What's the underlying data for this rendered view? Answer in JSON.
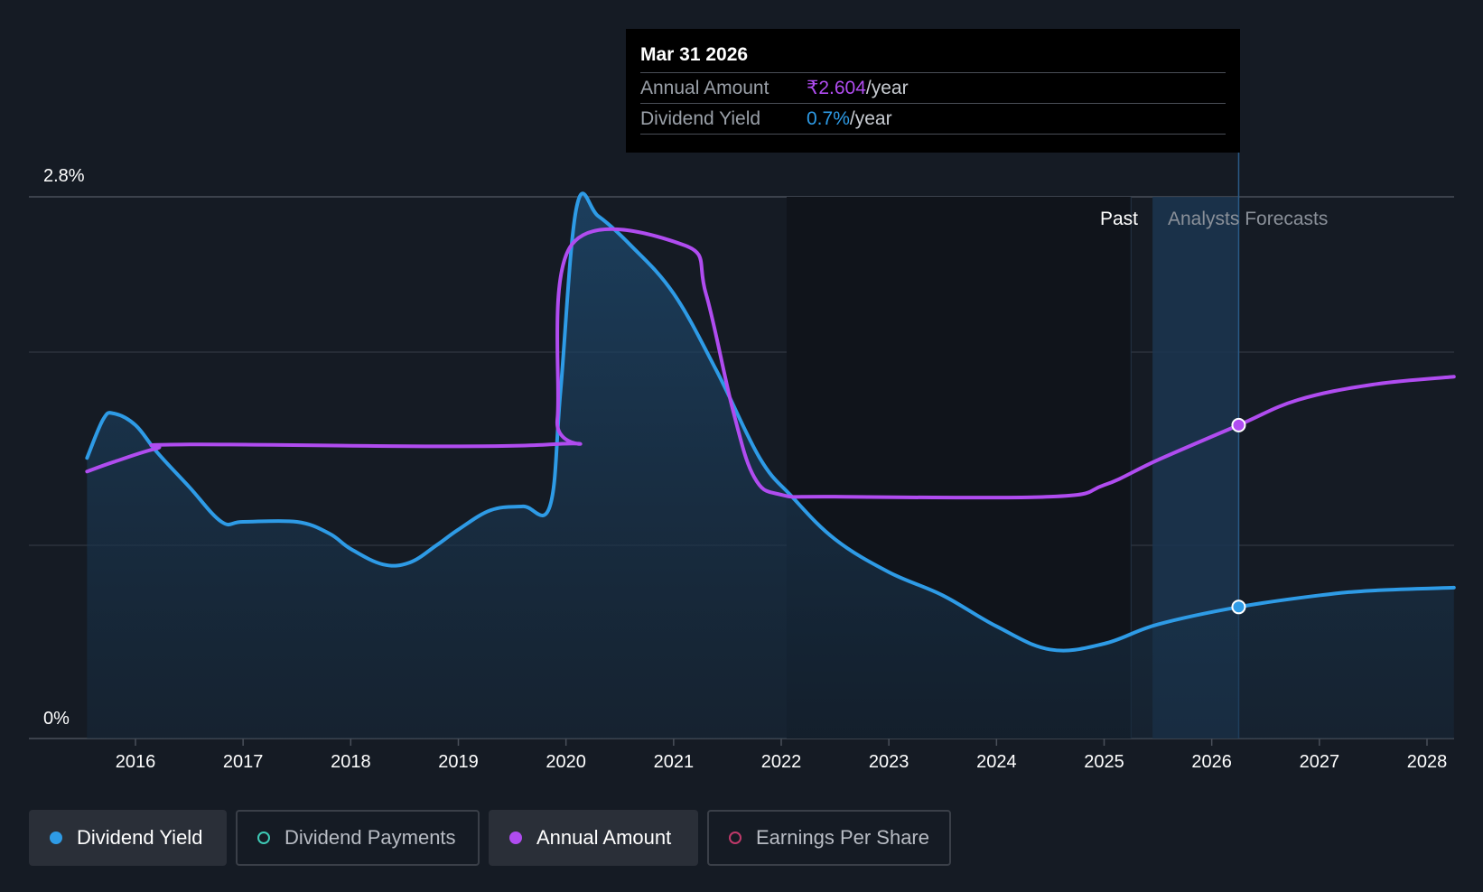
{
  "tooltip": {
    "date": "Mar 31 2026",
    "rows": [
      {
        "label": "Annual Amount",
        "value": "₹2.604",
        "unit": "/year"
      },
      {
        "label": "Dividend Yield",
        "value": "0.7%",
        "unit": "/year"
      }
    ]
  },
  "regions": {
    "past": "Past",
    "forecast": "Analysts Forecasts"
  },
  "legend": [
    {
      "label": "Dividend Yield",
      "color": "#2e9be6",
      "active": true
    },
    {
      "label": "Dividend Payments",
      "color": "#3ec9b5",
      "active": false
    },
    {
      "label": "Annual Amount",
      "color": "#b04cf0",
      "active": true
    },
    {
      "label": "Earnings Per Share",
      "color": "#c0396a",
      "active": false
    }
  ],
  "chart_data": {
    "type": "line",
    "y_ticks": [
      "2.8%",
      "0%"
    ],
    "x_ticks": [
      "2016",
      "2017",
      "2018",
      "2019",
      "2020",
      "2021",
      "2022",
      "2023",
      "2024",
      "2025",
      "2026",
      "2027",
      "2028"
    ],
    "ylim": [
      0,
      2.8
    ],
    "xlim": [
      2015.0,
      2028.25
    ],
    "past_end": 2025.25,
    "forecast_start": 2025.45,
    "cursor_x": 2026.25,
    "series": [
      {
        "name": "Dividend Yield",
        "color": "#2e9be6",
        "points": [
          [
            2015.55,
            1.45
          ],
          [
            2015.7,
            1.65
          ],
          [
            2015.8,
            1.68
          ],
          [
            2016.0,
            1.62
          ],
          [
            2016.2,
            1.48
          ],
          [
            2016.5,
            1.3
          ],
          [
            2016.8,
            1.12
          ],
          [
            2017.0,
            1.12
          ],
          [
            2017.5,
            1.12
          ],
          [
            2017.8,
            1.06
          ],
          [
            2018.0,
            0.98
          ],
          [
            2018.3,
            0.9
          ],
          [
            2018.55,
            0.91
          ],
          [
            2018.8,
            1.0
          ],
          [
            2019.0,
            1.08
          ],
          [
            2019.3,
            1.18
          ],
          [
            2019.6,
            1.2
          ],
          [
            2019.85,
            1.2
          ],
          [
            2019.95,
            1.8
          ],
          [
            2020.1,
            2.75
          ],
          [
            2020.3,
            2.7
          ],
          [
            2020.6,
            2.55
          ],
          [
            2021.0,
            2.3
          ],
          [
            2021.4,
            1.9
          ],
          [
            2021.8,
            1.45
          ],
          [
            2022.1,
            1.25
          ],
          [
            2022.5,
            1.03
          ],
          [
            2023.0,
            0.86
          ],
          [
            2023.5,
            0.74
          ],
          [
            2024.0,
            0.58
          ],
          [
            2024.5,
            0.46
          ],
          [
            2025.0,
            0.49
          ],
          [
            2025.5,
            0.59
          ],
          [
            2026.25,
            0.68
          ],
          [
            2027.0,
            0.74
          ],
          [
            2027.5,
            0.765
          ],
          [
            2028.25,
            0.78
          ]
        ]
      },
      {
        "name": "Annual Amount",
        "color": "#b04cf0",
        "points": [
          [
            2015.55,
            1.38
          ],
          [
            2015.8,
            1.43
          ],
          [
            2016.2,
            1.5
          ],
          [
            2016.5,
            1.52
          ],
          [
            2019.85,
            1.52
          ],
          [
            2019.92,
            1.65
          ],
          [
            2020.05,
            2.55
          ],
          [
            2021.1,
            2.55
          ],
          [
            2021.3,
            2.3
          ],
          [
            2021.55,
            1.7
          ],
          [
            2021.75,
            1.35
          ],
          [
            2022.0,
            1.26
          ],
          [
            2022.5,
            1.25
          ],
          [
            2024.5,
            1.25
          ],
          [
            2025.0,
            1.31
          ],
          [
            2025.5,
            1.44
          ],
          [
            2026.25,
            1.62
          ],
          [
            2026.8,
            1.75
          ],
          [
            2027.5,
            1.83
          ],
          [
            2028.25,
            1.87
          ]
        ]
      }
    ]
  }
}
